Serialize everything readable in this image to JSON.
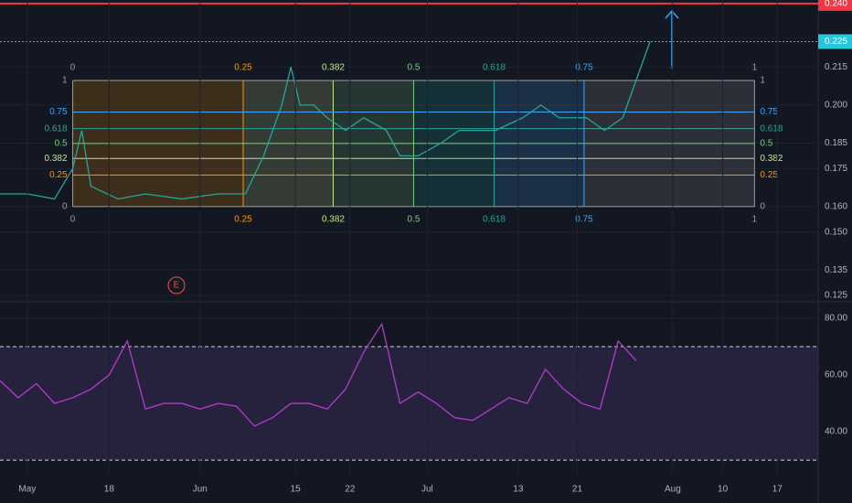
{
  "chart_data": [
    {
      "type": "line",
      "x": [
        0,
        6,
        12,
        16,
        18,
        20,
        26,
        32,
        40,
        48,
        54,
        58,
        62,
        64,
        66,
        69,
        72,
        76,
        80,
        85,
        88,
        92,
        97,
        101,
        109,
        115,
        119,
        123,
        129,
        133,
        137,
        141,
        143
      ],
      "series": [
        {
          "color": "#26a69a",
          "values": [
            0.165,
            0.165,
            0.163,
            0.175,
            0.19,
            0.168,
            0.163,
            0.165,
            0.163,
            0.165,
            0.165,
            0.18,
            0.2,
            0.215,
            0.2,
            0.2,
            0.195,
            0.19,
            0.195,
            0.19,
            0.18,
            0.18,
            0.185,
            0.19,
            0.19,
            0.195,
            0.2,
            0.195,
            0.195,
            0.19,
            0.195,
            0.215,
            0.225
          ]
        }
      ],
      "xlim": [
        0,
        180
      ],
      "ylim": [
        0.1232,
        0.2414
      ],
      "yticks": [
        {
          "value": 0.215,
          "label": "0.215"
        },
        {
          "value": 0.2,
          "label": "0.200"
        },
        {
          "value": 0.185,
          "label": "0.185"
        },
        {
          "value": 0.175,
          "label": "0.175"
        },
        {
          "value": 0.16,
          "label": "0.160"
        },
        {
          "value": 0.15,
          "label": "0.150"
        },
        {
          "value": 0.135,
          "label": "0.135"
        },
        {
          "value": 0.125,
          "label": "0.125"
        }
      ],
      "levels": [
        {
          "value": 0.24,
          "label": "0.240",
          "color": "#f23645"
        },
        {
          "value": 0.225,
          "label": "0.225",
          "color": "#26c6da"
        }
      ],
      "fib": {
        "price_range": [
          0.16,
          0.2097
        ],
        "x_range": [
          16,
          166
        ],
        "ratios": [
          0,
          0.25,
          0.382,
          0.5,
          0.618,
          0.75,
          1
        ],
        "colors": [
          "#9e9e9e",
          "#ff9800",
          "#c6e48b",
          "#81c784",
          "#26a69a",
          "#42a5f5",
          "#9e9e9e"
        ]
      },
      "marker": "E"
    },
    {
      "type": "line",
      "x": [
        0,
        4,
        8,
        12,
        16,
        20,
        24,
        28,
        32,
        36,
        40,
        44,
        48,
        52,
        56,
        60,
        64,
        68,
        72,
        76,
        80,
        84,
        88,
        92,
        96,
        100,
        104,
        108,
        112,
        116,
        120,
        124,
        128,
        132,
        136,
        140
      ],
      "series": [
        {
          "color": "#b13cc8",
          "values": [
            58,
            52,
            57,
            50,
            52,
            55,
            60,
            72,
            48,
            50,
            50,
            48,
            50,
            49,
            42,
            45,
            50,
            50,
            48,
            55,
            68,
            78,
            50,
            54,
            50,
            45,
            44,
            48,
            52,
            50,
            62,
            55,
            50,
            48,
            72,
            65
          ]
        }
      ],
      "xlim": [
        0,
        180
      ],
      "ylim": [
        25.2,
        84.2
      ],
      "band": [
        30,
        70
      ],
      "yticks": [
        {
          "value": 80,
          "label": "80.00"
        },
        {
          "value": 60,
          "label": "60.00"
        },
        {
          "value": 40,
          "label": "40.00"
        }
      ],
      "xticks": [
        {
          "value": 6,
          "label": "May"
        },
        {
          "value": 24,
          "label": "18"
        },
        {
          "value": 44,
          "label": "Jun"
        },
        {
          "value": 65,
          "label": "15"
        },
        {
          "value": 77,
          "label": "22"
        },
        {
          "value": 94,
          "label": "Jul"
        },
        {
          "value": 114,
          "label": "13"
        },
        {
          "value": 127,
          "label": "21"
        },
        {
          "value": 148,
          "label": "Aug"
        },
        {
          "value": 159,
          "label": "10"
        },
        {
          "value": 171,
          "label": "17"
        }
      ]
    }
  ]
}
